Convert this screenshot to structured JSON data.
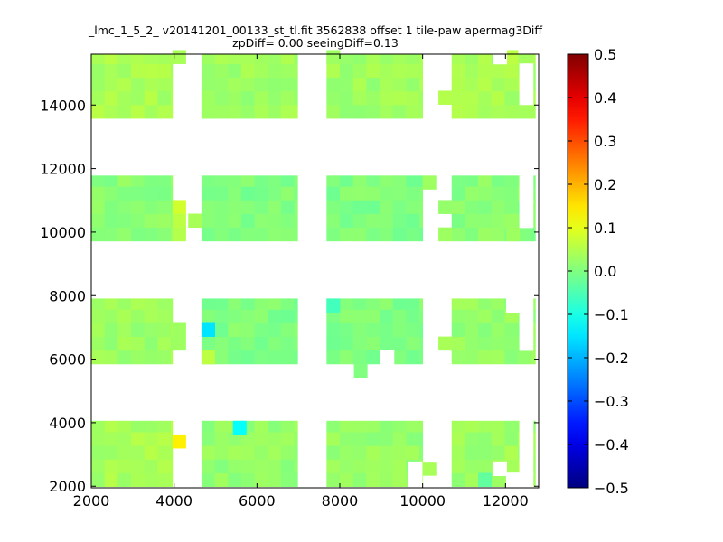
{
  "chart_data": {
    "type": "heatmap",
    "title_line1": "_lmc_1_5_2_ v20141201_00133_st_tl.fit 3562838 offset 1 tile-paw apermag3Diff",
    "title_line2": "zpDiff= 0.00 seeingDiff=0.13",
    "xlabel": "",
    "ylabel": "",
    "xlim": [
      2000,
      12800
    ],
    "ylim": [
      1950,
      15600
    ],
    "x_ticks": [
      2000,
      4000,
      6000,
      8000,
      10000,
      12000
    ],
    "y_ticks": [
      2000,
      4000,
      6000,
      8000,
      10000,
      12000,
      14000
    ],
    "x_tick_labels": [
      "2000",
      "4000",
      "6000",
      "8000",
      "10000",
      "12000"
    ],
    "y_tick_labels": [
      "2000",
      "4000",
      "6000",
      "8000",
      "10000",
      "12000",
      "14000"
    ],
    "colorbar": {
      "colormap": "jet",
      "vmin": -0.5,
      "vmax": 0.5,
      "ticks": [
        -0.5,
        -0.4,
        -0.3,
        -0.2,
        -0.1,
        0.0,
        0.1,
        0.2,
        0.3,
        0.4,
        0.5
      ],
      "tick_labels": [
        "−0.5",
        "−0.4",
        "−0.3",
        "−0.2",
        "−0.1",
        "0.0",
        "0.1",
        "0.2",
        "0.3",
        "0.4",
        "0.5"
      ]
    },
    "cell_size": [
      320,
      430
    ],
    "regions": [
      {
        "x0": 2000,
        "x1": 3960,
        "y0": 1990,
        "y1": 4060,
        "value": 0.04
      },
      {
        "x0": 4660,
        "x1": 6980,
        "y0": 1990,
        "y1": 4060,
        "value": 0.02
      },
      {
        "x0": 7680,
        "x1": 10000,
        "y0": 1990,
        "y1": 4060,
        "value": 0.02
      },
      {
        "x0": 10700,
        "x1": 12720,
        "y0": 1990,
        "y1": 4060,
        "value": 0.03
      },
      {
        "x0": 2000,
        "x1": 3960,
        "y0": 5850,
        "y1": 7910,
        "value": 0.03
      },
      {
        "x0": 4660,
        "x1": 6980,
        "y0": 5850,
        "y1": 7910,
        "value": 0.0
      },
      {
        "x0": 7680,
        "x1": 10000,
        "y0": 5850,
        "y1": 7910,
        "value": 0.0
      },
      {
        "x0": 10700,
        "x1": 12720,
        "y0": 5850,
        "y1": 7910,
        "value": 0.02
      },
      {
        "x0": 2000,
        "x1": 3960,
        "y0": 9720,
        "y1": 11780,
        "value": 0.01
      },
      {
        "x0": 4660,
        "x1": 6980,
        "y0": 9720,
        "y1": 11780,
        "value": 0.0
      },
      {
        "x0": 7680,
        "x1": 10000,
        "y0": 9720,
        "y1": 11780,
        "value": 0.0
      },
      {
        "x0": 10700,
        "x1": 12720,
        "y0": 9720,
        "y1": 11780,
        "value": 0.01
      },
      {
        "x0": 2000,
        "x1": 3960,
        "y0": 13580,
        "y1": 15600,
        "value": 0.04
      },
      {
        "x0": 4660,
        "x1": 6980,
        "y0": 13580,
        "y1": 15600,
        "value": 0.03
      },
      {
        "x0": 7680,
        "x1": 10000,
        "y0": 13580,
        "y1": 15600,
        "value": 0.03
      },
      {
        "x0": 10700,
        "x1": 12720,
        "y0": 13580,
        "y1": 15600,
        "value": 0.04
      }
    ],
    "extra_cells": [
      {
        "x": 3960,
        "y": 15300,
        "value": 0.04
      },
      {
        "x": 4660,
        "y": 14020,
        "value": 0.03
      },
      {
        "x": 4660,
        "y": 13580,
        "value": 0.03
      },
      {
        "x": 7680,
        "y": 15300,
        "value": 0.03
      },
      {
        "x": 10380,
        "y": 14020,
        "value": 0.05
      },
      {
        "x": 11980,
        "y": 15300,
        "value": 0.06
      },
      {
        "x": 3960,
        "y": 10580,
        "value": 0.08
      },
      {
        "x": 3960,
        "y": 10150,
        "value": 0.06
      },
      {
        "x": 3960,
        "y": 9720,
        "value": 0.05
      },
      {
        "x": 4340,
        "y": 10150,
        "value": 0.04
      },
      {
        "x": 10000,
        "y": 11350,
        "value": 0.03
      },
      {
        "x": 10380,
        "y": 10580,
        "value": 0.02
      },
      {
        "x": 10380,
        "y": 9720,
        "value": 0.03
      },
      {
        "x": 12020,
        "y": 9720,
        "value": 0.03
      },
      {
        "x": 3960,
        "y": 6710,
        "value": 0.03
      },
      {
        "x": 3960,
        "y": 6280,
        "value": 0.03
      },
      {
        "x": 4660,
        "y": 6710,
        "value": -0.15
      },
      {
        "x": 4660,
        "y": 5850,
        "value": 0.06
      },
      {
        "x": 7680,
        "y": 7480,
        "value": -0.06
      },
      {
        "x": 8340,
        "y": 5420,
        "value": 0.0
      },
      {
        "x": 10380,
        "y": 6280,
        "value": 0.04
      },
      {
        "x": 3960,
        "y": 3200,
        "value": 0.14
      },
      {
        "x": 5420,
        "y": 3630,
        "value": -0.12
      },
      {
        "x": 10000,
        "y": 2340,
        "value": 0.04
      },
      {
        "x": 11340,
        "y": 1990,
        "value": -0.03
      }
    ],
    "holes": [
      {
        "x": 4300,
        "y": 15300
      },
      {
        "x": 11700,
        "y": 15300
      },
      {
        "x": 12340,
        "y": 14870
      },
      {
        "x": 12340,
        "y": 14440
      },
      {
        "x": 12340,
        "y": 14020
      },
      {
        "x": 12340,
        "y": 11350
      },
      {
        "x": 12340,
        "y": 10920
      },
      {
        "x": 12340,
        "y": 10580
      },
      {
        "x": 12340,
        "y": 10150
      },
      {
        "x": 12020,
        "y": 7480
      },
      {
        "x": 12340,
        "y": 7480
      },
      {
        "x": 12340,
        "y": 7050
      },
      {
        "x": 12340,
        "y": 6710
      },
      {
        "x": 12340,
        "y": 6280
      },
      {
        "x": 12340,
        "y": 3630
      },
      {
        "x": 12340,
        "y": 3200
      },
      {
        "x": 12340,
        "y": 2770
      },
      {
        "x": 12340,
        "y": 2340
      },
      {
        "x": 12340,
        "y": 1990
      },
      {
        "x": 12020,
        "y": 1990
      },
      {
        "x": 11700,
        "y": 2340
      },
      {
        "x": 9660,
        "y": 2340
      },
      {
        "x": 9660,
        "y": 1990
      },
      {
        "x": 8980,
        "y": 5850
      }
    ],
    "grid": false,
    "legend": "colorbar-right"
  }
}
